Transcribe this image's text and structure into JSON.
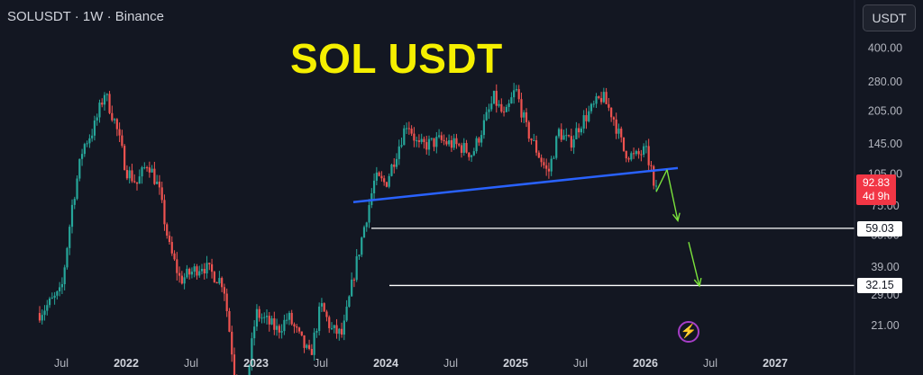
{
  "header": {
    "symbol": "SOLUSDT · 1W · Binance",
    "currency_button": "USDT"
  },
  "annotation_title": "SOL USDT",
  "price_tag": {
    "price": "92.83",
    "countdown": "4d 9h"
  },
  "levels": [
    {
      "label": "59.03",
      "value": 59.03
    },
    {
      "label": "32.15",
      "value": 32.15
    }
  ],
  "colors": {
    "background": "#131722",
    "up": "#26a69a",
    "down": "#ef5350",
    "trendline": "#2962ff",
    "arrow": "#7be33c",
    "title": "#f5ef00"
  },
  "icons": {
    "flash": "lightning-icon"
  },
  "chart_data": {
    "type": "candlestick",
    "timeframe": "1W",
    "y_scale": "log",
    "y_axis_ticks": [
      400,
      280,
      205,
      145,
      105,
      75,
      55,
      39,
      29,
      21
    ],
    "y_axis_labels": [
      "400.00",
      "280.00",
      "205.00",
      "145.00",
      "105.00",
      "75.00",
      "55.00",
      "39.00",
      "29.00",
      "21.00"
    ],
    "x_axis_labels": [
      "Jul",
      "2022",
      "Jul",
      "2023",
      "Jul",
      "2024",
      "Jul",
      "2025",
      "Jul",
      "2026",
      "Jul",
      "2027"
    ],
    "x_axis_dates": [
      "2021-07",
      "2022-01",
      "2022-07",
      "2023-01",
      "2023-07",
      "2024-01",
      "2024-07",
      "2025-01",
      "2025-07",
      "2026-01",
      "2026-07",
      "2027-01"
    ],
    "price_path": [
      [
        "2021-05",
        24
      ],
      [
        "2021-07",
        30
      ],
      [
        "2021-08",
        75
      ],
      [
        "2021-09",
        140
      ],
      [
        "2021-10",
        170
      ],
      [
        "2021-11",
        250
      ],
      [
        "2021-12",
        180
      ],
      [
        "2022-01",
        110
      ],
      [
        "2022-02",
        95
      ],
      [
        "2022-03",
        120
      ],
      [
        "2022-04",
        90
      ],
      [
        "2022-05",
        48
      ],
      [
        "2022-06",
        34
      ],
      [
        "2022-08",
        40
      ],
      [
        "2022-10",
        33
      ],
      [
        "2022-11",
        13
      ],
      [
        "2022-12",
        10
      ],
      [
        "2023-01",
        24
      ],
      [
        "2023-03",
        20
      ],
      [
        "2023-04",
        23
      ],
      [
        "2023-06",
        15
      ],
      [
        "2023-07",
        26
      ],
      [
        "2023-08",
        20
      ],
      [
        "2023-09",
        19
      ],
      [
        "2023-10",
        35
      ],
      [
        "2023-11",
        60
      ],
      [
        "2023-12",
        100
      ],
      [
        "2024-01",
        95
      ],
      [
        "2024-03",
        185
      ],
      [
        "2024-04",
        140
      ],
      [
        "2024-06",
        150
      ],
      [
        "2024-08",
        140
      ],
      [
        "2024-09",
        130
      ],
      [
        "2024-11",
        235
      ],
      [
        "2024-12",
        190
      ],
      [
        "2025-01",
        260
      ],
      [
        "2025-02",
        170
      ],
      [
        "2025-04",
        105
      ],
      [
        "2025-05",
        165
      ],
      [
        "2025-06",
        145
      ],
      [
        "2025-07",
        180
      ],
      [
        "2025-09",
        240
      ],
      [
        "2025-10",
        195
      ],
      [
        "2025-11",
        135
      ],
      [
        "2025-12",
        125
      ],
      [
        "2026-01",
        135
      ],
      [
        "2026-02",
        92.83
      ]
    ],
    "last_price": 92.83,
    "trendline": {
      "from": [
        "2023-10",
        78
      ],
      "to": [
        "2026-04",
        112
      ]
    },
    "horizontal_levels": [
      59.03,
      32.15
    ],
    "projection_path": [
      [
        "2026-02",
        87
      ],
      [
        "2026-03",
        110
      ],
      [
        "2026-04",
        64
      ],
      [
        "2026-05",
        51
      ],
      [
        "2026-06",
        32
      ]
    ]
  }
}
